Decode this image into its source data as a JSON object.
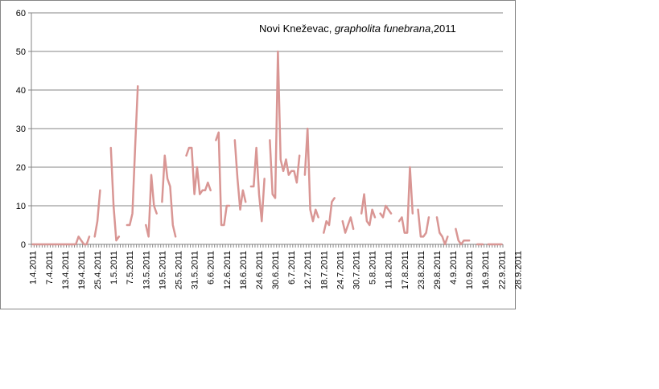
{
  "chart_data": {
    "type": "line",
    "title": {
      "location": "Novi Kneževac, ",
      "species": "grapholita funebrana",
      "year": ",2011"
    },
    "xlabel": "",
    "ylabel": "",
    "ylim": [
      0,
      60
    ],
    "yticks": [
      0,
      10,
      20,
      30,
      40,
      50,
      60
    ],
    "grid": "horizontal",
    "legend": "none",
    "line_color": "#d99694",
    "x_start": "1.4.2011",
    "x_tick_labels": [
      "1.4.2011",
      "7.4.2011",
      "13.4.2011",
      "19.4.2011",
      "25.4.2011",
      "1.5.2011",
      "7.5.2011",
      "13.5.2011",
      "19.5.2011",
      "25.5.2011",
      "31.5.2011",
      "6.6.2011",
      "12.6.2011",
      "18.6.2011",
      "24.6.2011",
      "30.6.2011",
      "6.7.2011",
      "12.7.2011",
      "18.7.2011",
      "24.7.2011",
      "30.7.2011",
      "5.8.2011",
      "11.8.2011",
      "17.8.2011",
      "23.8.2011",
      "29.8.2011",
      "4.9.2011",
      "10.9.2011",
      "16.9.2011",
      "22.9.2011",
      "28.9.2011"
    ],
    "series": [
      {
        "values": [
          0,
          0,
          0,
          0,
          0,
          0,
          0,
          0,
          0,
          0,
          0,
          0,
          0,
          0,
          0,
          0,
          0,
          2,
          1,
          0,
          0,
          2,
          null,
          2,
          6,
          14,
          null,
          null,
          null,
          25,
          10,
          1,
          2,
          null,
          null,
          5,
          5,
          8,
          25,
          41,
          null,
          null,
          5,
          2,
          18,
          10,
          8,
          null,
          11,
          23,
          17,
          15,
          5,
          2,
          null,
          null,
          null,
          23,
          25,
          25,
          13,
          20,
          13,
          14,
          14,
          16,
          14,
          null,
          27,
          29,
          5,
          5,
          10,
          10,
          null,
          27,
          17,
          9,
          14,
          11,
          null,
          15,
          15,
          25,
          13,
          6,
          17,
          null,
          27,
          13,
          12,
          50,
          22,
          19,
          22,
          18,
          19,
          19,
          16,
          23,
          null,
          18,
          30,
          9,
          6,
          9,
          7,
          null,
          3,
          6,
          5,
          11,
          12,
          null,
          null,
          6,
          3,
          5,
          7,
          4,
          null,
          null,
          8,
          13,
          6,
          5,
          9,
          7,
          null,
          8,
          7,
          10,
          9,
          8,
          null,
          null,
          6,
          7,
          3,
          3,
          20,
          8,
          null,
          9,
          2,
          2,
          3,
          7,
          null,
          null,
          7,
          3,
          2,
          0,
          2,
          null,
          null,
          4,
          1,
          0,
          1,
          1,
          1,
          null,
          null,
          0,
          0,
          0,
          null,
          0,
          0,
          0,
          0,
          0,
          0
        ]
      }
    ]
  }
}
